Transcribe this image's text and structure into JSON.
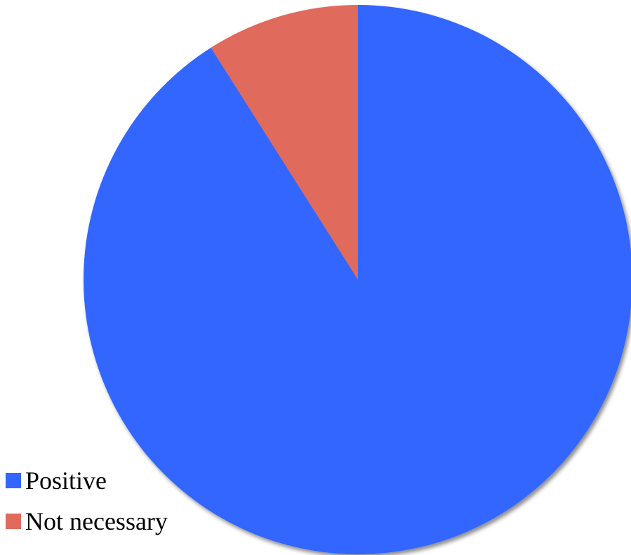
{
  "chart_data": {
    "type": "pie",
    "title": "",
    "slices": [
      {
        "label": "Positive",
        "value": 91,
        "color": "#3366ff"
      },
      {
        "label": "Not necessary",
        "value": 9,
        "color": "#e06b5c"
      }
    ],
    "start_angle_deg": 0,
    "direction": "clockwise",
    "legend_position": "bottom-left"
  }
}
